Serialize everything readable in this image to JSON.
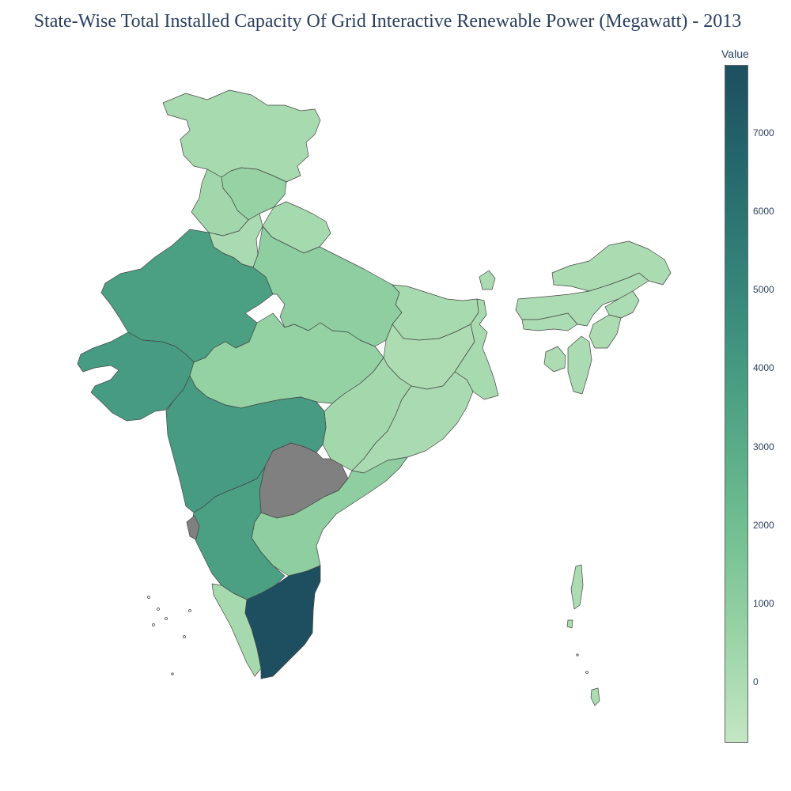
{
  "title": "State-Wise Total Installed Capacity Of Grid Interactive Renewable Power (Megawatt) - 2013",
  "colorbar": {
    "title": "Value",
    "ticks": [
      "0",
      "1000",
      "2000",
      "3000",
      "4000",
      "5000",
      "6000",
      "7000"
    ],
    "colors": [
      "#c4e6c3",
      "#96d2a4",
      "#6dbc90",
      "#4da284",
      "#36877a",
      "#266b6e",
      "#1d4f60"
    ]
  },
  "chart_data": {
    "type": "choropleth",
    "region": "India",
    "value_range": [
      -700,
      7800
    ],
    "no_data_color": "#808080",
    "states": [
      {
        "name": "Jammu and Kashmir",
        "value": 150
      },
      {
        "name": "Himachal Pradesh",
        "value": 700
      },
      {
        "name": "Punjab",
        "value": 380
      },
      {
        "name": "Haryana",
        "value": 140
      },
      {
        "name": "Uttarakhand",
        "value": 250
      },
      {
        "name": "Rajasthan",
        "value": 3700
      },
      {
        "name": "Uttar Pradesh",
        "value": 1000
      },
      {
        "name": "Gujarat",
        "value": 3900
      },
      {
        "name": "Madhya Pradesh",
        "value": 800
      },
      {
        "name": "Bihar",
        "value": 170
      },
      {
        "name": "Jharkhand",
        "value": 20
      },
      {
        "name": "West Bengal",
        "value": 160
      },
      {
        "name": "Chhattisgarh",
        "value": 330
      },
      {
        "name": "Odisha",
        "value": 120
      },
      {
        "name": "Maharashtra",
        "value": 3900
      },
      {
        "name": "Telangana",
        "value": null
      },
      {
        "name": "Andhra Pradesh",
        "value": 1000
      },
      {
        "name": "Karnataka",
        "value": 3700
      },
      {
        "name": "Goa",
        "value": null
      },
      {
        "name": "Kerala",
        "value": 200
      },
      {
        "name": "Tamil Nadu",
        "value": 7800
      },
      {
        "name": "Sikkim",
        "value": 50
      },
      {
        "name": "Assam",
        "value": 40
      },
      {
        "name": "Arunachal Pradesh",
        "value": 100
      },
      {
        "name": "Meghalaya",
        "value": 40
      },
      {
        "name": "Nagaland",
        "value": 30
      },
      {
        "name": "Manipur",
        "value": 10
      },
      {
        "name": "Mizoram",
        "value": 60
      },
      {
        "name": "Tripura",
        "value": 20
      },
      {
        "name": "Andaman and Nicobar Islands",
        "value": 10
      }
    ]
  }
}
